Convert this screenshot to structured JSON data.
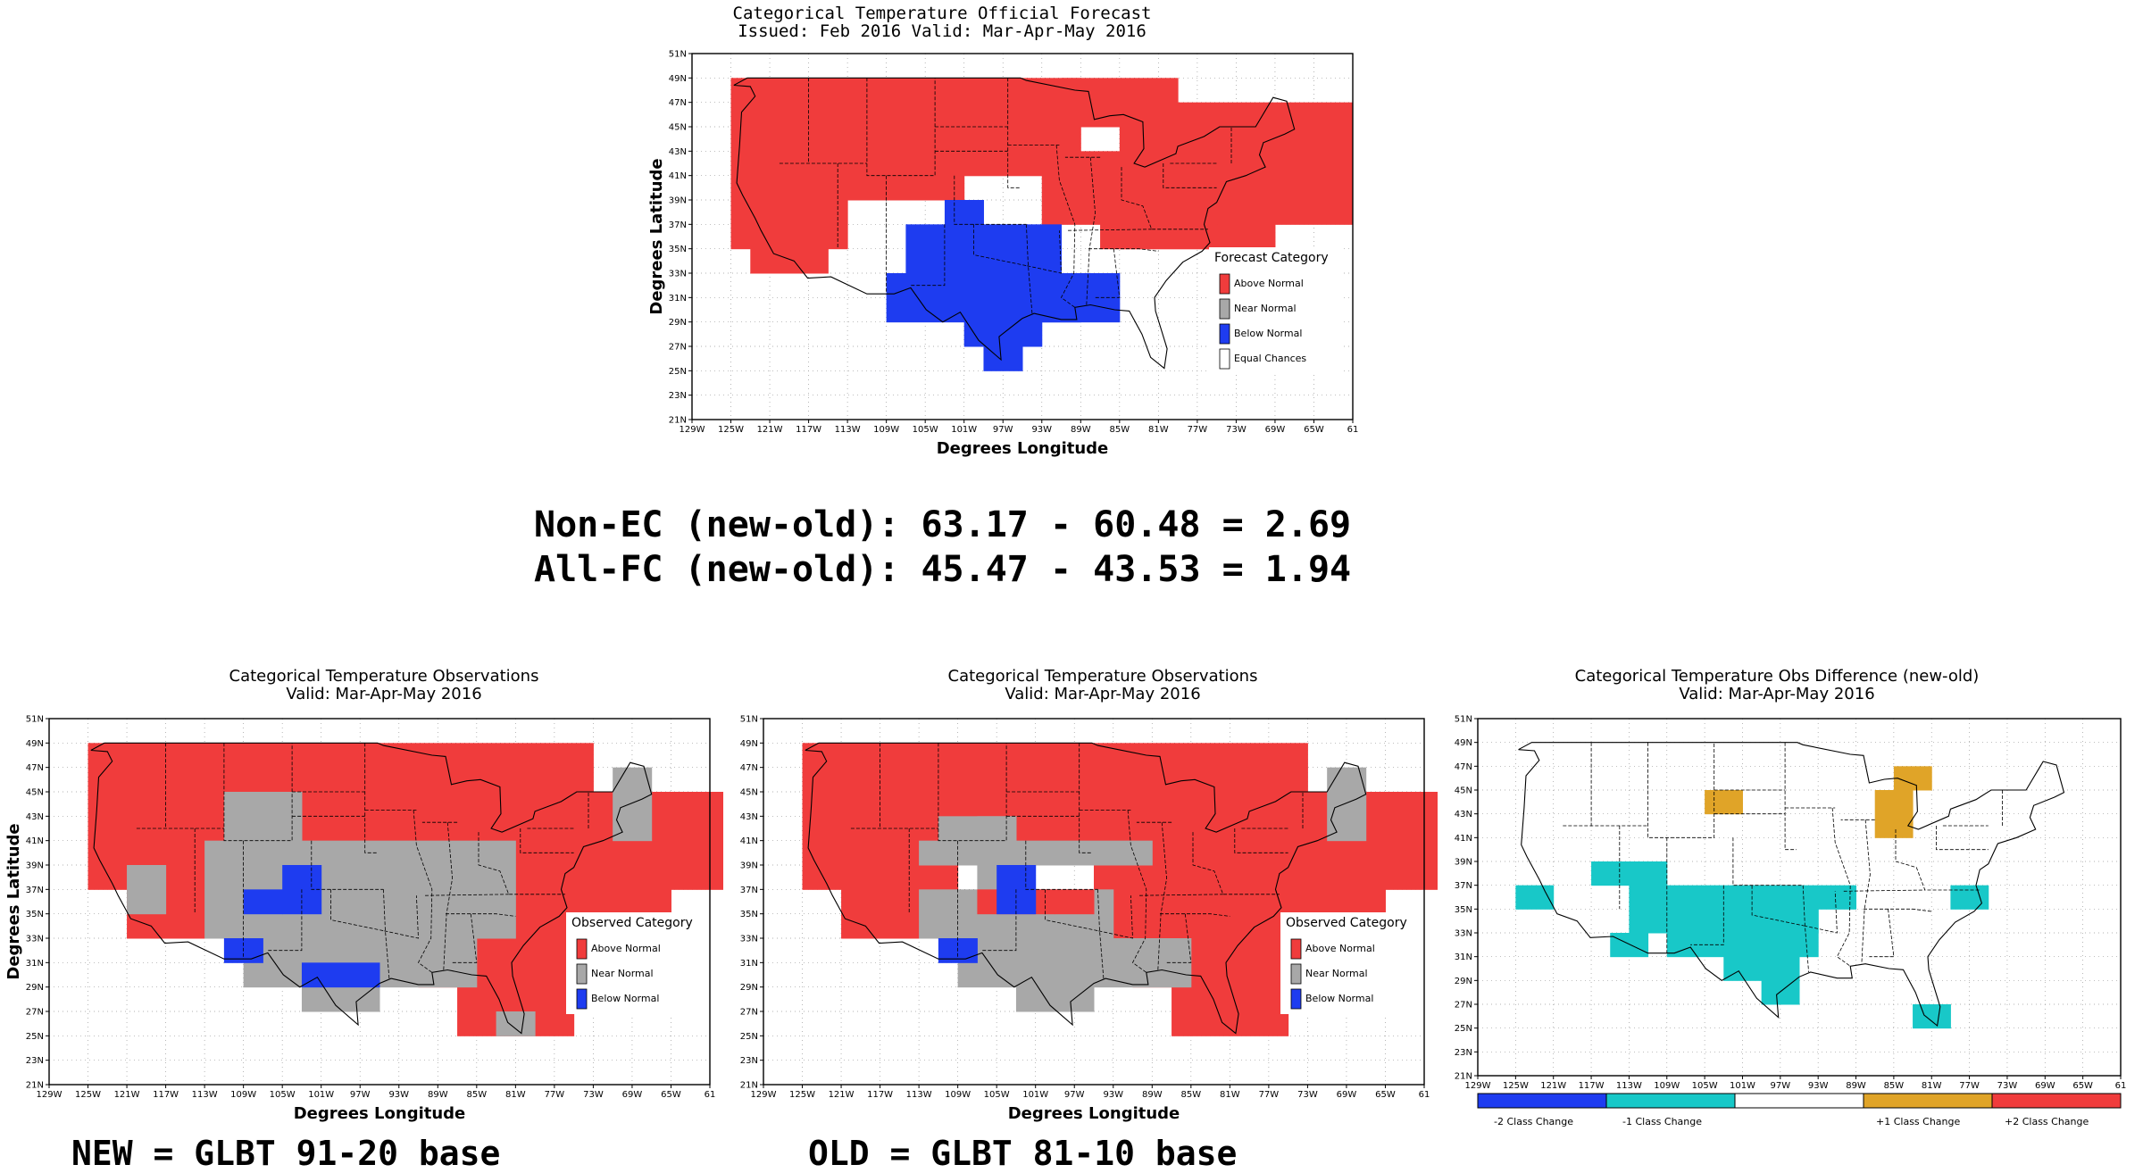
{
  "top_panel": {
    "title_line1": "Categorical Temperature Official Forecast",
    "title_line2": "Issued: Feb 2016 Valid: Mar-Apr-May 2016",
    "xlabel": "Degrees Longitude",
    "ylabel": "Degrees Latitude",
    "legend_title": "Forecast Category",
    "legend": [
      {
        "label": "Above Normal",
        "color": "#f03c3c"
      },
      {
        "label": "Near Normal",
        "color": "#a8a8a8"
      },
      {
        "label": "Below Normal",
        "color": "#1e3cf0"
      },
      {
        "label": "Equal Chances",
        "color": "#ffffff"
      }
    ]
  },
  "stats": {
    "line1": "Non-EC (new-old): 63.17 - 60.48 = 2.69",
    "line2": "All-FC (new-old): 45.47 - 43.53 = 1.94"
  },
  "obs_new": {
    "title_line1": "Categorical Temperature Observations",
    "title_line2": "Valid: Mar-Apr-May 2016",
    "xlabel": "Degrees Longitude",
    "ylabel": "Degrees Latitude",
    "legend_title": "Observed Category",
    "legend": [
      {
        "label": "Above Normal",
        "color": "#f03c3c"
      },
      {
        "label": "Near Normal",
        "color": "#a8a8a8"
      },
      {
        "label": "Below Normal",
        "color": "#1e3cf0"
      }
    ],
    "caption": "NEW = GLBT 91-20 base"
  },
  "obs_old": {
    "title_line1": "Categorical Temperature Observations",
    "title_line2": "Valid: Mar-Apr-May 2016",
    "xlabel": "Degrees Longitude",
    "legend_title": "Observed Category",
    "legend": [
      {
        "label": "Above Normal",
        "color": "#f03c3c"
      },
      {
        "label": "Near Normal",
        "color": "#a8a8a8"
      },
      {
        "label": "Below Normal",
        "color": "#1e3cf0"
      }
    ],
    "caption": "OLD = GLBT 81-10 base"
  },
  "diff": {
    "title_line1": "Categorical Temperature Obs Difference (new-old)",
    "title_line2": "Valid: Mar-Apr-May 2016",
    "colorbar": [
      {
        "label": "-2 Class Change",
        "color": "#1e3cf0"
      },
      {
        "label": "-1 Class Change",
        "color": "#18c8c8"
      },
      {
        "label": "",
        "color": "#ffffff"
      },
      {
        "label": "+1 Class Change",
        "color": "#e0a428"
      },
      {
        "label": "+2 Class Change",
        "color": "#f03c3c"
      }
    ]
  },
  "lat_ticks": [
    "51N",
    "49N",
    "47N",
    "45N",
    "43N",
    "41N",
    "39N",
    "37N",
    "35N",
    "33N",
    "31N",
    "29N",
    "27N",
    "25N",
    "23N",
    "21N"
  ],
  "lon_ticks": [
    "129W",
    "125W",
    "121W",
    "117W",
    "113W",
    "109W",
    "105W",
    "101W",
    "97W",
    "93W",
    "89W",
    "85W",
    "81W",
    "77W",
    "73W",
    "69W",
    "65W",
    "61"
  ]
}
